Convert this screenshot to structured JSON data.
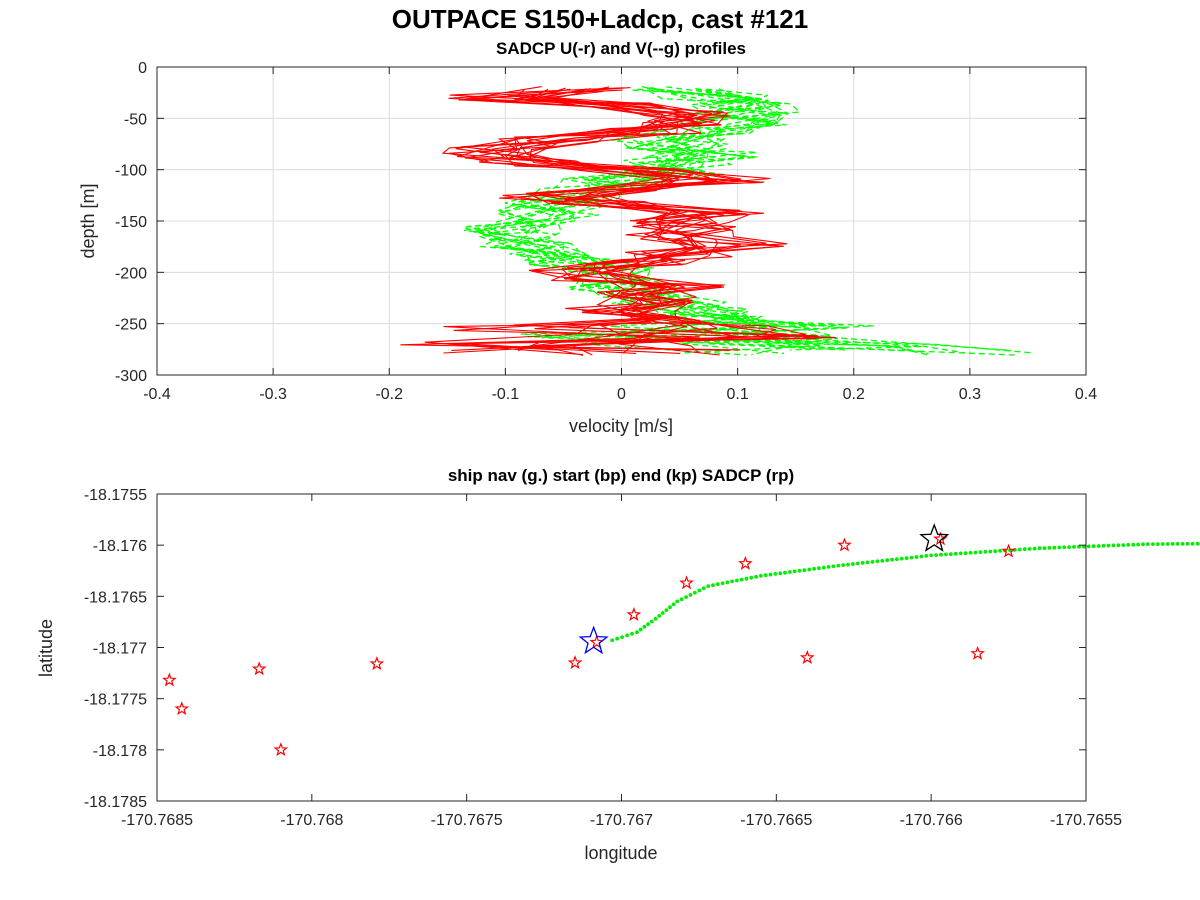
{
  "figure": {
    "title": "OUTPACE S150+Ladcp, cast #121"
  },
  "chart_data": [
    {
      "type": "line",
      "title": "SADCP U(-r) and V(--g) profiles",
      "xlabel": "velocity [m/s]",
      "ylabel": "depth [m]",
      "xlim": [
        -0.4,
        0.4
      ],
      "ylim": [
        -300,
        0
      ],
      "xticks": [
        -0.4,
        -0.3,
        -0.2,
        -0.1,
        0,
        0.1,
        0.2,
        0.3,
        0.4
      ],
      "xtick_labels": [
        "-0.4",
        "-0.3",
        "-0.2",
        "-0.1",
        "0",
        "0.1",
        "0.2",
        "0.3",
        "0.4"
      ],
      "yticks": [
        0,
        -50,
        -100,
        -150,
        -200,
        -250,
        -300
      ],
      "ytick_labels": [
        "0",
        "-50",
        "-100",
        "-150",
        "-200",
        "-250",
        "-300"
      ],
      "grid": true,
      "colors": {
        "u": "#ff0000",
        "v": "#00ff00"
      },
      "depth": [
        -22,
        -30,
        -38,
        -46,
        -54,
        -62,
        -70,
        -78,
        -86,
        -94,
        -102,
        -110,
        -118,
        -126,
        -134,
        -142,
        -150,
        -158,
        -166,
        -174,
        -182,
        -190,
        -198,
        -206,
        -214,
        -222,
        -230,
        -238,
        -246,
        -254,
        -262,
        -270,
        -278
      ],
      "u_mean": [
        -0.04,
        -0.1,
        0.0,
        0.06,
        0.06,
        0.02,
        -0.06,
        -0.1,
        -0.12,
        -0.08,
        0.02,
        0.08,
        0.02,
        -0.06,
        -0.02,
        0.08,
        0.05,
        0.05,
        0.05,
        0.1,
        0.05,
        0.01,
        -0.03,
        -0.02,
        0.04,
        0.02,
        0.02,
        0.0,
        0.02,
        -0.02,
        0.12,
        -0.05,
        -0.02
      ],
      "v_mean": [
        0.04,
        0.08,
        0.1,
        0.11,
        0.1,
        0.08,
        0.04,
        0.05,
        0.07,
        0.05,
        0.04,
        0.0,
        -0.02,
        -0.04,
        -0.06,
        -0.06,
        -0.07,
        -0.09,
        -0.08,
        -0.08,
        -0.06,
        -0.04,
        -0.02,
        -0.01,
        0.0,
        0.02,
        0.04,
        0.06,
        0.08,
        0.1,
        0.05,
        0.12,
        0.2
      ],
      "profiles": 14
    },
    {
      "type": "scatter",
      "title": "ship nav (g.) start (bp) end (kp) SADCP (rp)",
      "xlabel": "longitude",
      "ylabel": "latitude",
      "xlim": [
        -170.7685,
        -170.7655
      ],
      "ylim": [
        -18.1785,
        -18.1755
      ],
      "xticks": [
        -170.7685,
        -170.768,
        -170.7675,
        -170.767,
        -170.7665,
        -170.766,
        -170.7655
      ],
      "xtick_labels": [
        "-170.7685",
        "-170.768",
        "-170.7675",
        "-170.767",
        "-170.7665",
        "-170.766",
        "-170.7655"
      ],
      "yticks": [
        -18.1755,
        -18.176,
        -18.1765,
        -18.177,
        -18.1775,
        -18.178,
        -18.1785
      ],
      "ytick_labels": [
        "-18.1755",
        "-18.176",
        "-18.1765",
        "-18.177",
        "-18.1775",
        "-18.178",
        "-18.1785"
      ],
      "grid": false,
      "colors": {
        "nav": "#00ee00",
        "start": "#0000ff",
        "end": "#000000",
        "sadcp": "#ff0000"
      },
      "ship_nav_path": [
        [
          -170.76703,
          -18.17693
        ],
        [
          -170.76695,
          -18.17685
        ],
        [
          -170.76689,
          -18.17672
        ],
        [
          -170.76682,
          -18.17655
        ],
        [
          -170.76672,
          -18.1764
        ],
        [
          -170.76655,
          -18.1763
        ],
        [
          -170.7663,
          -18.1762
        ],
        [
          -170.766,
          -18.1761
        ],
        [
          -170.76565,
          -18.17603
        ],
        [
          -170.7653,
          -18.17599
        ],
        [
          -170.7649,
          -18.17598
        ],
        [
          -170.76455,
          -18.17597
        ],
        [
          -170.76425,
          -18.17595
        ],
        [
          -170.764,
          -18.17594
        ],
        [
          -170.7636,
          -18.17593
        ],
        [
          -170.7633,
          -18.17594
        ],
        [
          -170.7629,
          -18.17595
        ],
        [
          -170.7624,
          -18.17595
        ],
        [
          -170.76185,
          -18.17594
        ],
        [
          -170.7613,
          -18.17594
        ],
        [
          -170.76075,
          -18.17595
        ],
        [
          -170.7603,
          -18.17594
        ],
        [
          -170.76,
          -18.17594
        ]
      ],
      "start": [
        -170.76709,
        -18.17694
      ],
      "end": [
        -170.76599,
        -18.17594
      ],
      "sadcp": [
        [
          -170.76846,
          -18.17732
        ],
        [
          -170.76842,
          -18.1776
        ],
        [
          -170.76817,
          -18.17721
        ],
        [
          -170.7681,
          -18.178
        ],
        [
          -170.76779,
          -18.17716
        ],
        [
          -170.76715,
          -18.17715
        ],
        [
          -170.7664,
          -18.1771
        ],
        [
          -170.76585,
          -18.17706
        ],
        [
          -170.76708,
          -18.17695
        ],
        [
          -170.76696,
          -18.17668
        ],
        [
          -170.76679,
          -18.17637
        ],
        [
          -170.7666,
          -18.17618
        ],
        [
          -170.76628,
          -18.176
        ],
        [
          -170.76597,
          -18.17594
        ],
        [
          -170.76575,
          -18.17606
        ]
      ]
    }
  ]
}
